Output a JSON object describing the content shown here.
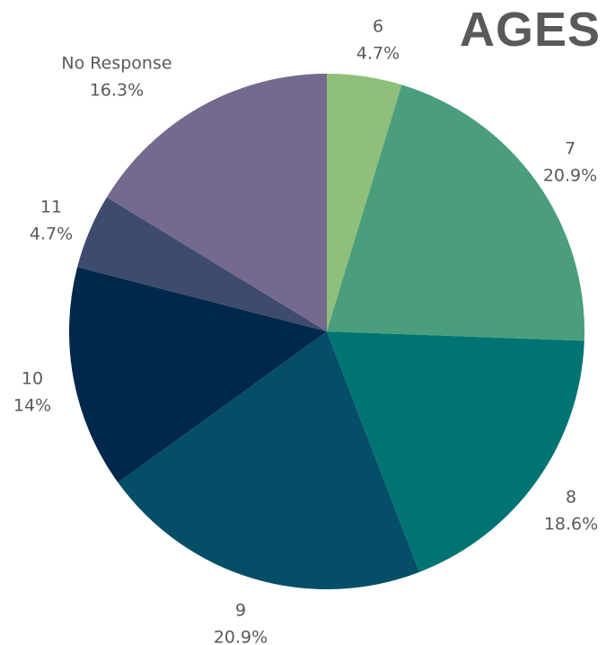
{
  "chart_data": {
    "type": "pie",
    "title": "AGES",
    "slices": [
      {
        "label": "6",
        "value": 4.7,
        "display": "4.7%",
        "color": "#8fbf7a"
      },
      {
        "label": "7",
        "value": 20.9,
        "display": "20.9%",
        "color": "#4a9e7c"
      },
      {
        "label": "8",
        "value": 18.6,
        "display": "18.6%",
        "color": "#007472"
      },
      {
        "label": "9",
        "value": 20.9,
        "display": "20.9%",
        "color": "#044e68"
      },
      {
        "label": "10",
        "value": 14,
        "display": "14%",
        "color": "#00284a"
      },
      {
        "label": "11",
        "value": 4.7,
        "display": "4.7%",
        "color": "#3e4b6e"
      },
      {
        "label": "No Response",
        "value": 16.3,
        "display": "16.3%",
        "color": "#736a8d"
      }
    ]
  }
}
